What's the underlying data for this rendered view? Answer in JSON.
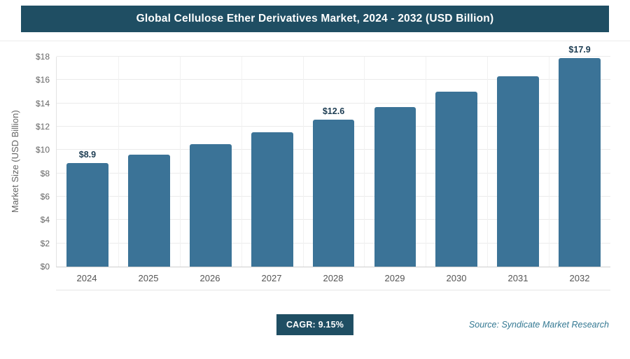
{
  "header": {
    "title": "Global Cellulose Ether Derivatives Market, 2024 - 2032 (USD Billion)"
  },
  "chart_data": {
    "type": "bar",
    "title": "Global Cellulose Ether Derivatives Market, 2024 - 2032 (USD Billion)",
    "categories": [
      "2024",
      "2025",
      "2026",
      "2027",
      "2028",
      "2029",
      "2030",
      "2031",
      "2032"
    ],
    "values": [
      8.9,
      9.6,
      10.5,
      11.5,
      12.6,
      13.7,
      15.0,
      16.3,
      17.9
    ],
    "data_labels": [
      "$8.9",
      null,
      null,
      null,
      "$12.6",
      null,
      null,
      null,
      "$17.9"
    ],
    "xlabel": "",
    "ylabel": "Market Size (USD Billion)",
    "ylim": [
      0,
      18
    ],
    "ytick_labels": [
      "$0",
      "$2",
      "$4",
      "$6",
      "$8",
      "$10",
      "$12",
      "$14",
      "$16",
      "$18"
    ],
    "grid": true,
    "legend": "none",
    "bar_color": "#3b7397"
  },
  "footer": {
    "cagr_label": "CAGR: 9.15%",
    "source": "Source: Syndicate Market Research"
  },
  "colors": {
    "header_bg": "#1f4e63",
    "bar": "#3b7397",
    "badge_bg": "#1f4e63",
    "source_text": "#337892"
  }
}
